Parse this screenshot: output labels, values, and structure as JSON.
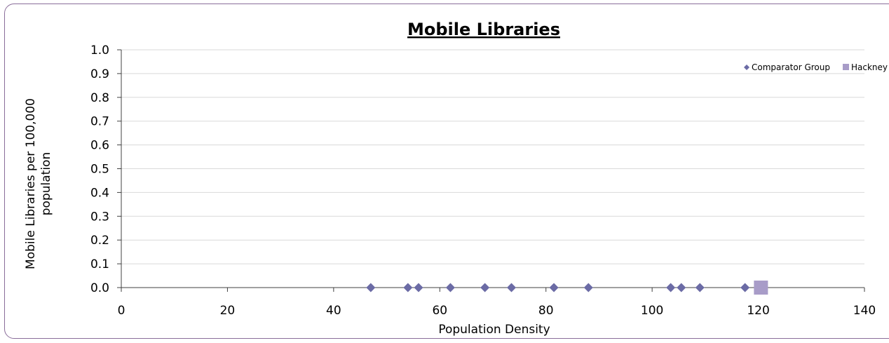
{
  "chart_data": {
    "type": "scatter",
    "title": "Mobile Libraries",
    "xlabel": "Population Density",
    "ylabel_lines": [
      "Mobile Libraries per 100,000",
      "population"
    ],
    "xlim": [
      0,
      140
    ],
    "ylim": [
      0,
      1.0
    ],
    "x_ticks": [
      0,
      20,
      40,
      60,
      80,
      100,
      120,
      140
    ],
    "y_ticks": [
      "0.0",
      "0.1",
      "0.2",
      "0.3",
      "0.4",
      "0.5",
      "0.6",
      "0.7",
      "0.8",
      "0.9",
      "1.0"
    ],
    "grid": true,
    "legend_position": "top-right",
    "series": [
      {
        "name": "Comparator Group",
        "marker": "diamond",
        "color": "#6b6ba5",
        "points": [
          {
            "x": 47,
            "y": 0
          },
          {
            "x": 54,
            "y": 0
          },
          {
            "x": 56,
            "y": 0
          },
          {
            "x": 62,
            "y": 0
          },
          {
            "x": 68.5,
            "y": 0
          },
          {
            "x": 73.5,
            "y": 0
          },
          {
            "x": 81.5,
            "y": 0
          },
          {
            "x": 88,
            "y": 0
          },
          {
            "x": 103.5,
            "y": 0
          },
          {
            "x": 105.5,
            "y": 0
          },
          {
            "x": 109,
            "y": 0
          },
          {
            "x": 117.5,
            "y": 0
          }
        ]
      },
      {
        "name": "Hackney",
        "marker": "square",
        "color": "#a89cc8",
        "points": [
          {
            "x": 120.5,
            "y": 0
          }
        ]
      }
    ]
  }
}
